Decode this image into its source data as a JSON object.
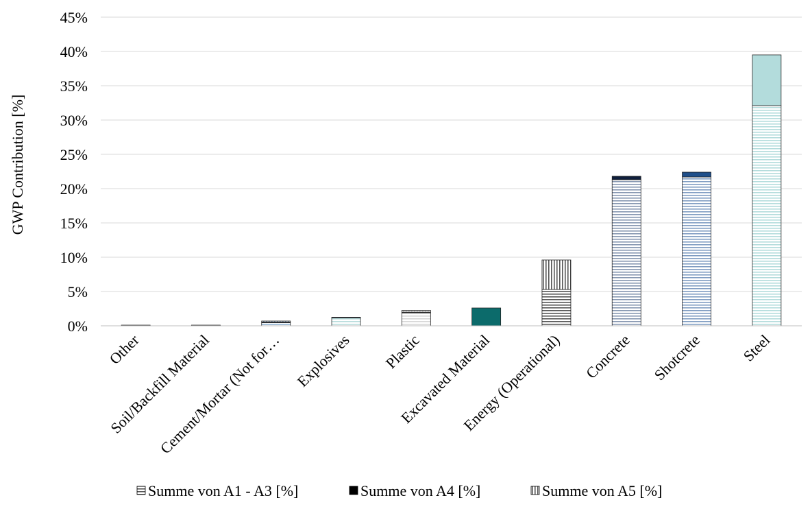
{
  "chart_data": {
    "type": "bar",
    "stacked": true,
    "title": "",
    "xlabel": "",
    "ylabel": "GWP Contribution [%]",
    "ylim": [
      0,
      45
    ],
    "ytick_step": 5,
    "ytick_labels": [
      "0%",
      "5%",
      "10%",
      "15%",
      "20%",
      "25%",
      "30%",
      "35%",
      "40%",
      "45%"
    ],
    "grid": true,
    "legend_position": "bottom",
    "categories": [
      "Other",
      "Soil/Backfill Material",
      "Cement/Mortar (Not for…",
      "Explosives",
      "Plastic",
      "Excavated Material",
      "Energy (Operational)",
      "Concrete",
      "Shotcrete",
      "Steel"
    ],
    "category_colors": [
      "#9aa8b8",
      "#9aa8b8",
      "#8aaed0",
      "#b7dcdc",
      "#d6d6d6",
      "#0c6b6b",
      "#555555",
      "#8596b0",
      "#7f9cc2",
      "#b3dcdc"
    ],
    "category_dark_colors": [
      "#333333",
      "#333333",
      "#1f3a66",
      "#1f3a66",
      "#555555",
      "#0c6b6b",
      "#000000",
      "#0f1f3d",
      "#1f4f8a",
      "#4a8a8a"
    ],
    "series": [
      {
        "name": "Summe von A1 - A3 [%]",
        "pattern": "horizontal",
        "values": [
          0.1,
          0.1,
          0.45,
          1.15,
          1.9,
          2.6,
          5.3,
          21.3,
          21.7,
          32.1
        ]
      },
      {
        "name": "Summe von A4 [%]",
        "pattern": "solid",
        "values": [
          0.0,
          0.0,
          0.1,
          0.1,
          0.1,
          0.0,
          0.0,
          0.5,
          0.7,
          0.0
        ]
      },
      {
        "name": "Summe von A5 [%]",
        "pattern": "vertical",
        "values": [
          0.0,
          0.0,
          0.15,
          0.0,
          0.25,
          0.0,
          4.3,
          0.0,
          0.0,
          7.4
        ]
      }
    ]
  }
}
